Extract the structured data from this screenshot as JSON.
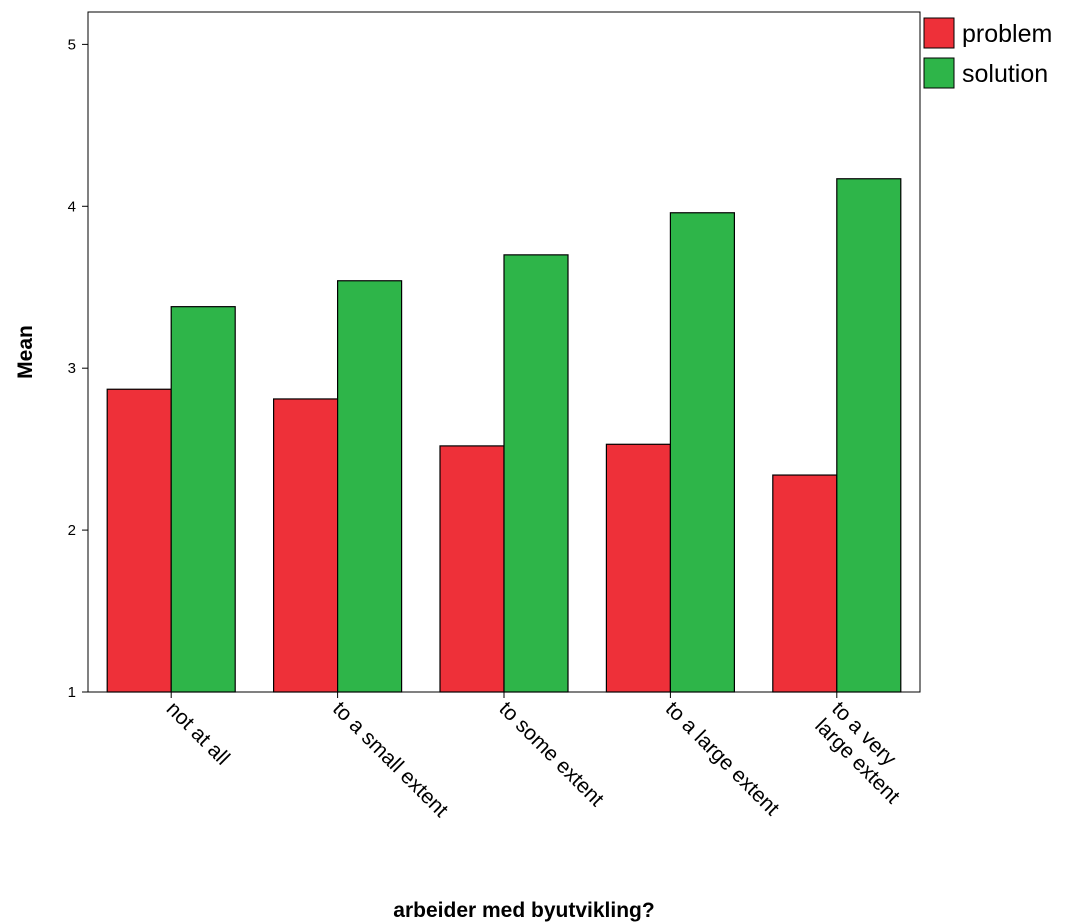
{
  "chart_data": {
    "type": "bar",
    "categories": [
      "not at all",
      "to a small extent",
      "to some extent",
      "to a large extent",
      "to a very large extent"
    ],
    "category_lines": [
      [
        "not at all"
      ],
      [
        "to a small extent"
      ],
      [
        "to some extent"
      ],
      [
        "to a large extent"
      ],
      [
        "to a very",
        "large extent"
      ]
    ],
    "series": [
      {
        "name": "problem",
        "values": [
          2.87,
          2.81,
          2.52,
          2.53,
          2.34
        ],
        "color": "#ee3039"
      },
      {
        "name": "solution",
        "values": [
          3.38,
          3.54,
          3.7,
          3.96,
          4.17
        ],
        "color": "#2eb549"
      }
    ],
    "title": "",
    "xlabel": "arbeider med byutvikling?",
    "ylabel": "Mean",
    "ylim": [
      1,
      5.2
    ],
    "yticks": [
      1,
      2,
      3,
      4,
      5
    ],
    "grid": false,
    "legend_position": "top-right-outside"
  }
}
